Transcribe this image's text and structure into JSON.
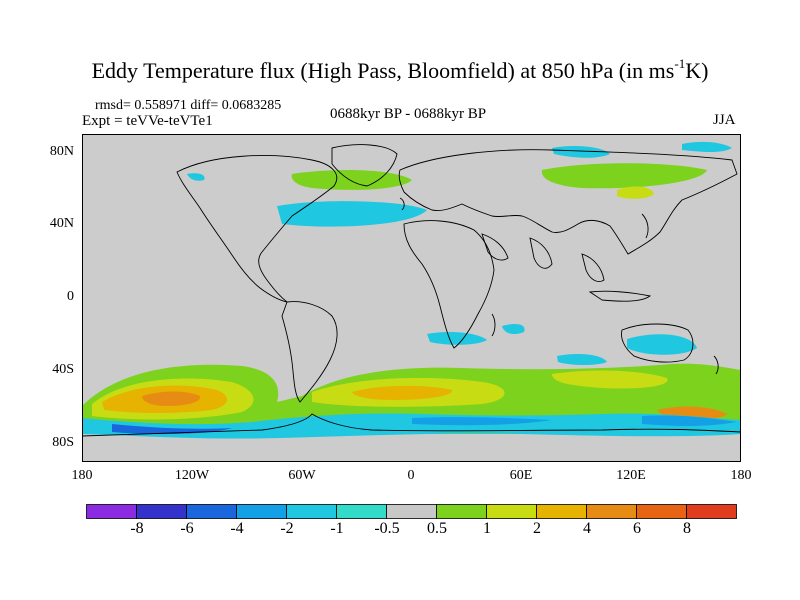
{
  "title": {
    "main": "Eddy Temperature flux (High Pass, Bloomfield) at 850 hPa (in ms",
    "sup": "-1",
    "end": "K)"
  },
  "stats": "rmsd= 0.558971  diff= 0.0683285",
  "experiment": "Expt = teVVe-teVTe1",
  "period": "0688kyr BP - 0688kyr BP",
  "season": "JJA",
  "map": {
    "background_color": "#cccccc",
    "lat_labels": [
      "80N",
      "40N",
      "0",
      "40S",
      "80S"
    ],
    "lon_labels": [
      "180",
      "120W",
      "60W",
      "0",
      "60E",
      "120E",
      "180"
    ]
  },
  "colorbar": {
    "labels": [
      "-8",
      "-6",
      "-4",
      "-2",
      "-1",
      "-0.5",
      "0.5",
      "1",
      "2",
      "4",
      "6",
      "8"
    ],
    "colors": [
      "#8a2be2",
      "#3333cc",
      "#1a66dd",
      "#14a0e6",
      "#1fc8e0",
      "#33dcc8",
      "#c8c8c8",
      "#7dd21e",
      "#c8dc14",
      "#e6b400",
      "#e68c14",
      "#e66414",
      "#e03c1e"
    ]
  }
}
